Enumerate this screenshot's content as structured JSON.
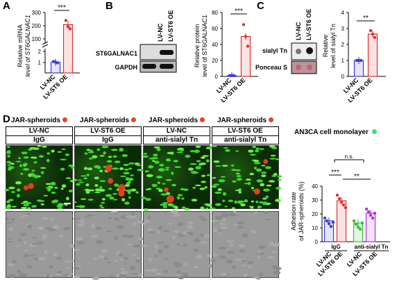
{
  "panels": {
    "A": {
      "letter": "A",
      "ylabel_line1": "Relative mRNA",
      "ylabel_line2": "level of ST6GALNAC1",
      "yticks": [
        "1",
        "2",
        "100",
        "200",
        "300"
      ],
      "significance": "***",
      "groups": [
        "LV-NC",
        "LV-ST6 OE"
      ],
      "colors": [
        "#3b3bd6",
        "#e03030"
      ],
      "chart_data": {
        "type": "bar",
        "categories": [
          "LV-NC",
          "LV-ST6 OE"
        ],
        "values": [
          1,
          208
        ],
        "ylabel": "Relative mRNA level of ST6GALNAC1",
        "yaxis_break": true
      }
    },
    "B": {
      "letter": "B",
      "lane_labels": [
        "LV-NC",
        "LV-ST6 OE"
      ],
      "blot_labels": [
        "ST6GALNAC1",
        "GAPDH"
      ],
      "ylabel_line1": "Relative protein",
      "ylabel_line2": "level of ST6GALNAC1",
      "yticks": [
        "0",
        "20",
        "40",
        "60",
        "80"
      ],
      "significance": "***",
      "groups": [
        "LV-NC",
        "LV-ST6 OE"
      ],
      "chart_data": {
        "type": "bar",
        "categories": [
          "LV-NC",
          "LV-ST6 OE"
        ],
        "values": [
          1,
          50
        ],
        "ylim": [
          0,
          80
        ]
      }
    },
    "C": {
      "letter": "C",
      "lane_labels": [
        "LV-NC",
        "LV-ST6 OE"
      ],
      "blot_labels": [
        "sialyl Tn",
        "Ponceau S"
      ],
      "ylabel_line1": "Relative",
      "ylabel_line2": "level of sialyl Tn",
      "yticks": [
        "0",
        "1",
        "2",
        "3",
        "4"
      ],
      "significance": "**",
      "groups": [
        "LV-NC",
        "LV-ST6 OE"
      ],
      "chart_data": {
        "type": "bar",
        "categories": [
          "LV-NC",
          "LV-ST6 OE"
        ],
        "values": [
          1,
          2.65
        ],
        "ylim": [
          0,
          4
        ]
      }
    },
    "D": {
      "letter": "D",
      "spheroid_label": "JAR-spheroids",
      "monolayer_label": "AN3CA cell monolayer",
      "columns": [
        {
          "group": "LV-NC",
          "treatment": "IgG"
        },
        {
          "group": "LV-ST6 OE",
          "treatment": "IgG"
        },
        {
          "group": "LV-NC",
          "treatment": "anti-sialyl Tn"
        },
        {
          "group": "LV-ST6 OE",
          "treatment": "anti-sialyl Tn"
        }
      ],
      "ylabel_line1": "Adhesion rate",
      "ylabel_line2": "of JAR-spheroids (%)",
      "yticks": [
        "0",
        "10",
        "20",
        "30",
        "40"
      ],
      "sig_ns": "n.s.",
      "sig_1": "***",
      "sig_2": "**",
      "treatment_labels": [
        "IgG",
        "anti-sialyl Tn"
      ],
      "groups": [
        "LV-NC",
        "LV-ST6 OE",
        "LV-NC",
        "LV-ST6 OE"
      ],
      "colors": [
        "#3b3bd6",
        "#e03030",
        "#2fc12f",
        "#b030e0"
      ],
      "chart_data": {
        "type": "bar",
        "categories": [
          "LV-NC",
          "LV-ST6 OE",
          "LV-NC",
          "LV-ST6 OE"
        ],
        "values": [
          15,
          29.5,
          13.5,
          20.5
        ],
        "ylim": [
          0,
          40
        ]
      }
    }
  }
}
